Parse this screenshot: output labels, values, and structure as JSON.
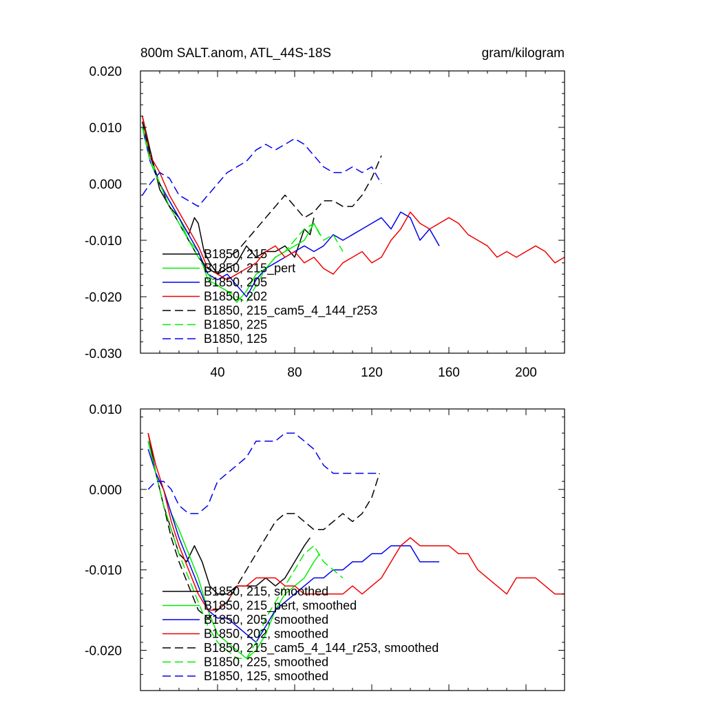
{
  "chart_data": [
    {
      "type": "line",
      "title": "800m SALT.anom, ATL_44S-18S",
      "units": "gram/kilogram",
      "xlim": [
        0,
        220
      ],
      "ylim": [
        -0.03,
        0.02
      ],
      "xticks": [
        40,
        80,
        120,
        160,
        200
      ],
      "xtick_labels": [
        "40",
        "80",
        "120",
        "160",
        "200"
      ],
      "yticks": [
        -0.03,
        -0.02,
        -0.01,
        0.0,
        0.01,
        0.02
      ],
      "ytick_labels": [
        "-0.030",
        "-0.020",
        "-0.010",
        "0.000",
        "0.010",
        "0.020"
      ],
      "legend_position": "bottom-left",
      "series": [
        {
          "name": "B1850, 215",
          "color": "#000000",
          "dashed": false,
          "x": [
            1,
            5,
            10,
            15,
            20,
            25,
            28,
            30,
            33,
            36,
            40,
            45,
            50,
            55,
            60,
            65,
            70,
            75,
            80,
            85,
            88,
            90
          ],
          "y": [
            0.012,
            0.006,
            -0.001,
            -0.004,
            -0.006,
            -0.009,
            -0.006,
            -0.007,
            -0.012,
            -0.014,
            -0.016,
            -0.015,
            -0.014,
            -0.011,
            -0.013,
            -0.012,
            -0.012,
            -0.011,
            -0.013,
            -0.008,
            -0.009,
            -0.006
          ]
        },
        {
          "name": "B1850, 215_pert",
          "color": "#00ee00",
          "dashed": false,
          "x": [
            1,
            5,
            10,
            15,
            20,
            25,
            30,
            35,
            40,
            45,
            50,
            55,
            60,
            65,
            70,
            75,
            80,
            85,
            90,
            93
          ],
          "y": [
            0.011,
            0.005,
            0.0,
            -0.003,
            -0.006,
            -0.01,
            -0.012,
            -0.017,
            -0.018,
            -0.019,
            -0.021,
            -0.019,
            -0.016,
            -0.015,
            -0.013,
            -0.012,
            -0.011,
            -0.01,
            -0.007,
            -0.009
          ]
        },
        {
          "name": "B1850, 205",
          "color": "#0000ee",
          "dashed": false,
          "x": [
            1,
            5,
            10,
            15,
            20,
            25,
            30,
            35,
            40,
            45,
            50,
            55,
            60,
            65,
            70,
            75,
            80,
            85,
            90,
            95,
            100,
            105,
            110,
            115,
            120,
            125,
            130,
            135,
            140,
            145,
            150,
            155
          ],
          "y": [
            0.01,
            0.004,
            0.0,
            -0.003,
            -0.006,
            -0.009,
            -0.012,
            -0.016,
            -0.017,
            -0.016,
            -0.018,
            -0.02,
            -0.017,
            -0.015,
            -0.014,
            -0.013,
            -0.012,
            -0.011,
            -0.012,
            -0.011,
            -0.009,
            -0.01,
            -0.009,
            -0.008,
            -0.007,
            -0.006,
            -0.008,
            -0.005,
            -0.006,
            -0.01,
            -0.008,
            -0.011
          ]
        },
        {
          "name": "B1850, 202",
          "color": "#ee0000",
          "dashed": false,
          "x": [
            1,
            5,
            10,
            15,
            20,
            25,
            30,
            35,
            40,
            45,
            50,
            55,
            60,
            65,
            70,
            75,
            80,
            85,
            90,
            95,
            100,
            105,
            110,
            115,
            120,
            125,
            130,
            135,
            140,
            145,
            150,
            155,
            160,
            165,
            170,
            175,
            180,
            185,
            190,
            195,
            200,
            205,
            210,
            215,
            220
          ],
          "y": [
            0.012,
            0.005,
            0.002,
            -0.002,
            -0.005,
            -0.008,
            -0.011,
            -0.015,
            -0.016,
            -0.017,
            -0.016,
            -0.015,
            -0.014,
            -0.012,
            -0.011,
            -0.013,
            -0.012,
            -0.014,
            -0.013,
            -0.015,
            -0.016,
            -0.014,
            -0.013,
            -0.012,
            -0.014,
            -0.013,
            -0.01,
            -0.008,
            -0.005,
            -0.007,
            -0.008,
            -0.007,
            -0.006,
            -0.007,
            -0.009,
            -0.01,
            -0.011,
            -0.013,
            -0.012,
            -0.013,
            -0.012,
            -0.011,
            -0.012,
            -0.014,
            -0.013
          ]
        },
        {
          "name": "B1850, 215_cam5_4_144_r253",
          "color": "#000000",
          "dashed": true,
          "x": [
            1,
            5,
            10,
            15,
            20,
            25,
            30,
            35,
            40,
            45,
            50,
            55,
            60,
            65,
            70,
            75,
            80,
            85,
            90,
            95,
            100,
            105,
            110,
            115,
            120,
            125
          ],
          "y": [
            0.011,
            0.005,
            0.0,
            -0.004,
            -0.007,
            -0.01,
            -0.013,
            -0.015,
            -0.016,
            -0.013,
            -0.012,
            -0.01,
            -0.008,
            -0.006,
            -0.004,
            -0.002,
            -0.004,
            -0.006,
            -0.005,
            -0.003,
            -0.003,
            -0.004,
            -0.004,
            -0.002,
            0.001,
            0.005
          ]
        },
        {
          "name": "B1850, 225",
          "color": "#00ee00",
          "dashed": true,
          "x": [
            1,
            5,
            10,
            15,
            20,
            25,
            30,
            35,
            40,
            45,
            50,
            55,
            60,
            65,
            70,
            75,
            80,
            85,
            90,
            95,
            100,
            105
          ],
          "y": [
            0.01,
            0.004,
            0.0,
            -0.004,
            -0.007,
            -0.01,
            -0.013,
            -0.016,
            -0.018,
            -0.019,
            -0.02,
            -0.021,
            -0.018,
            -0.015,
            -0.013,
            -0.012,
            -0.01,
            -0.008,
            -0.007,
            -0.01,
            -0.009,
            -0.012
          ]
        },
        {
          "name": "B1850, 125",
          "color": "#0000ee",
          "dashed": true,
          "x": [
            1,
            5,
            10,
            15,
            20,
            25,
            30,
            35,
            40,
            45,
            50,
            55,
            60,
            65,
            70,
            75,
            80,
            85,
            90,
            95,
            100,
            105,
            110,
            115,
            120,
            125
          ],
          "y": [
            -0.002,
            0.0,
            0.002,
            0.001,
            -0.002,
            -0.003,
            -0.004,
            -0.002,
            0.0,
            0.002,
            0.003,
            0.004,
            0.006,
            0.007,
            0.006,
            0.007,
            0.008,
            0.007,
            0.005,
            0.003,
            0.002,
            0.002,
            0.003,
            0.002,
            0.003,
            0.0
          ]
        }
      ]
    },
    {
      "type": "line",
      "title": "",
      "xlim": [
        0,
        220
      ],
      "ylim": [
        -0.025,
        0.01
      ],
      "xticks": [
        40,
        80,
        120,
        160,
        200
      ],
      "xtick_labels": [],
      "yticks": [
        -0.02,
        -0.01,
        0.0,
        0.01
      ],
      "ytick_labels": [
        "-0.020",
        "-0.010",
        "0.000",
        "0.010"
      ],
      "legend_position": "bottom-left",
      "series": [
        {
          "name": "B1850, 215, smoothed",
          "color": "#000000",
          "dashed": false,
          "x": [
            4,
            8,
            12,
            16,
            20,
            24,
            28,
            32,
            36,
            40,
            45,
            50,
            55,
            60,
            65,
            70,
            75,
            80,
            85,
            88
          ],
          "y": [
            0.007,
            0.002,
            -0.002,
            -0.005,
            -0.008,
            -0.009,
            -0.007,
            -0.009,
            -0.012,
            -0.013,
            -0.013,
            -0.012,
            -0.012,
            -0.012,
            -0.011,
            -0.012,
            -0.011,
            -0.009,
            -0.007,
            -0.006
          ]
        },
        {
          "name": "B1850, 215_pert, smoothed",
          "color": "#00ee00",
          "dashed": false,
          "x": [
            4,
            8,
            12,
            16,
            20,
            25,
            30,
            35,
            40,
            45,
            50,
            55,
            60,
            65,
            70,
            75,
            80,
            85,
            90,
            93
          ],
          "y": [
            0.006,
            0.002,
            0.0,
            -0.003,
            -0.005,
            -0.008,
            -0.011,
            -0.015,
            -0.018,
            -0.019,
            -0.02,
            -0.021,
            -0.02,
            -0.018,
            -0.015,
            -0.013,
            -0.012,
            -0.011,
            -0.009,
            -0.008
          ]
        },
        {
          "name": "B1850, 205, smoothed",
          "color": "#0000ee",
          "dashed": false,
          "x": [
            4,
            8,
            12,
            16,
            20,
            25,
            30,
            35,
            40,
            45,
            50,
            55,
            60,
            65,
            70,
            75,
            80,
            85,
            90,
            95,
            100,
            105,
            110,
            115,
            120,
            125,
            130,
            135,
            140,
            145,
            150,
            155
          ],
          "y": [
            0.005,
            0.002,
            0.0,
            -0.003,
            -0.006,
            -0.009,
            -0.012,
            -0.015,
            -0.016,
            -0.016,
            -0.017,
            -0.018,
            -0.019,
            -0.017,
            -0.015,
            -0.014,
            -0.013,
            -0.012,
            -0.011,
            -0.011,
            -0.01,
            -0.01,
            -0.009,
            -0.009,
            -0.008,
            -0.008,
            -0.007,
            -0.007,
            -0.007,
            -0.009,
            -0.009,
            -0.009
          ]
        },
        {
          "name": "B1850, 202, smoothed",
          "color": "#ee0000",
          "dashed": false,
          "x": [
            4,
            8,
            12,
            16,
            20,
            25,
            30,
            35,
            40,
            45,
            50,
            55,
            60,
            65,
            70,
            75,
            80,
            85,
            90,
            95,
            100,
            105,
            110,
            115,
            120,
            125,
            130,
            135,
            140,
            145,
            150,
            155,
            160,
            165,
            170,
            175,
            180,
            185,
            190,
            195,
            200,
            205,
            210,
            215,
            220
          ],
          "y": [
            0.007,
            0.003,
            0.0,
            -0.004,
            -0.007,
            -0.01,
            -0.013,
            -0.015,
            -0.015,
            -0.014,
            -0.012,
            -0.012,
            -0.011,
            -0.011,
            -0.011,
            -0.012,
            -0.012,
            -0.013,
            -0.013,
            -0.013,
            -0.013,
            -0.013,
            -0.012,
            -0.013,
            -0.012,
            -0.011,
            -0.009,
            -0.007,
            -0.006,
            -0.007,
            -0.007,
            -0.007,
            -0.007,
            -0.008,
            -0.008,
            -0.01,
            -0.011,
            -0.012,
            -0.013,
            -0.011,
            -0.011,
            -0.011,
            -0.012,
            -0.013,
            -0.013
          ]
        },
        {
          "name": "B1850, 215_cam5_4_144_r253, smoothed",
          "color": "#000000",
          "dashed": true,
          "x": [
            4,
            8,
            12,
            16,
            20,
            25,
            30,
            35,
            40,
            45,
            50,
            55,
            60,
            65,
            70,
            75,
            80,
            85,
            90,
            95,
            100,
            105,
            110,
            115,
            120,
            124
          ],
          "y": [
            0.006,
            0.002,
            -0.002,
            -0.006,
            -0.009,
            -0.012,
            -0.015,
            -0.016,
            -0.015,
            -0.014,
            -0.012,
            -0.01,
            -0.008,
            -0.006,
            -0.004,
            -0.003,
            -0.003,
            -0.004,
            -0.005,
            -0.005,
            -0.004,
            -0.003,
            -0.004,
            -0.003,
            -0.001,
            0.002
          ]
        },
        {
          "name": "B1850, 225, smoothed",
          "color": "#00ee00",
          "dashed": true,
          "x": [
            4,
            8,
            12,
            16,
            20,
            25,
            30,
            35,
            40,
            45,
            50,
            55,
            60,
            65,
            70,
            75,
            80,
            85,
            90,
            95,
            100,
            105
          ],
          "y": [
            0.006,
            0.002,
            -0.002,
            -0.005,
            -0.008,
            -0.011,
            -0.014,
            -0.017,
            -0.019,
            -0.02,
            -0.021,
            -0.021,
            -0.019,
            -0.016,
            -0.014,
            -0.012,
            -0.01,
            -0.008,
            -0.007,
            -0.009,
            -0.01,
            -0.011
          ]
        },
        {
          "name": "B1850, 125, smoothed",
          "color": "#0000ee",
          "dashed": true,
          "x": [
            4,
            8,
            12,
            16,
            20,
            25,
            30,
            35,
            40,
            45,
            50,
            55,
            60,
            65,
            70,
            75,
            80,
            85,
            90,
            95,
            100,
            105,
            110,
            115,
            120,
            124
          ],
          "y": [
            0.0,
            0.001,
            0.001,
            0.0,
            -0.002,
            -0.003,
            -0.003,
            -0.002,
            0.001,
            0.002,
            0.003,
            0.004,
            0.006,
            0.006,
            0.006,
            0.007,
            0.007,
            0.006,
            0.005,
            0.003,
            0.002,
            0.002,
            0.002,
            0.002,
            0.002,
            0.002
          ]
        }
      ]
    }
  ]
}
